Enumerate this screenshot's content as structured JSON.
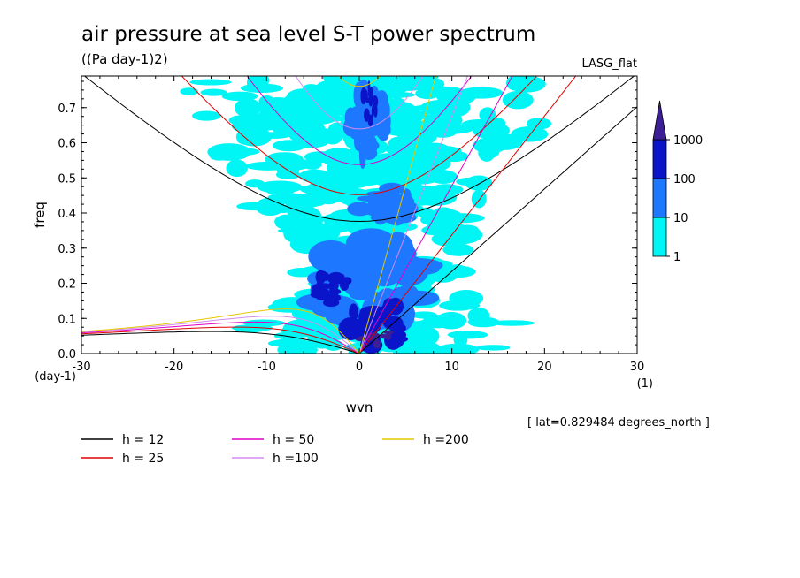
{
  "chart_data": {
    "type": "heatmap",
    "title": "air pressure at sea level S-T power spectrum",
    "subtitle": "((Pa day-1)2)",
    "model_label": "LASG_flat",
    "xlabel": "wvn",
    "ylabel": "freq",
    "x_unit": "(1)",
    "y_unit": "(day-1)",
    "xlim": [
      -30,
      30
    ],
    "ylim": [
      0,
      0.79
    ],
    "x_ticks": [
      -30,
      -20,
      -10,
      0,
      10,
      20,
      30
    ],
    "x_tick_labels": [
      "-30",
      "-20",
      "-10",
      "0",
      "10",
      "20",
      "30"
    ],
    "y_ticks": [
      0.0,
      0.1,
      0.2,
      0.3,
      0.4,
      0.5,
      0.6,
      0.7
    ],
    "y_tick_labels": [
      "0.0",
      "0.1",
      "0.2",
      "0.3",
      "0.4",
      "0.5",
      "0.6",
      "0.7"
    ],
    "colorbar": {
      "levels": [
        1,
        10,
        100,
        1000
      ],
      "labels": [
        "1",
        "10",
        "100",
        "1000"
      ],
      "colors": [
        "#00f5f5",
        "#1e78ff",
        "#0a14c8",
        "#3c1e96"
      ]
    },
    "footnote": "[ lat=0.829484 degrees_north ]",
    "dispersion_curves": [
      {
        "name": "h = 12",
        "legend": "h = 12",
        "h": 12,
        "color": "#000000"
      },
      {
        "name": "h = 25",
        "legend": "h = 25",
        "h": 25,
        "color": "#e10000"
      },
      {
        "name": "h = 50",
        "legend": "h = 50",
        "h": 50,
        "color": "#e100c8"
      },
      {
        "name": "h = 100",
        "legend": "h =100",
        "h": 100,
        "color": "#d28cf0"
      },
      {
        "name": "h = 200",
        "legend": "h =200",
        "h": 200,
        "color": "#e6c800"
      }
    ],
    "spectrum_regions": [
      {
        "level": 1,
        "shape": "band",
        "x": [
          -28,
          20
        ],
        "y": [
          0.0,
          0.79
        ],
        "note": "scattered cyan blotches"
      },
      {
        "level": 10,
        "shape": "blob",
        "cx": 1,
        "cy": 0.2,
        "rx": 6,
        "ry": 0.12
      },
      {
        "level": 10,
        "shape": "blob",
        "cx": 1,
        "cy": 0.66,
        "rx": 2,
        "ry": 0.1
      },
      {
        "level": 10,
        "shape": "blob",
        "cx": 3,
        "cy": 0.42,
        "rx": 3,
        "ry": 0.05
      },
      {
        "level": 100,
        "shape": "blob",
        "cx": 2,
        "cy": 0.08,
        "rx": 3,
        "ry": 0.08
      },
      {
        "level": 100,
        "shape": "blob",
        "cx": -3,
        "cy": 0.18,
        "rx": 2,
        "ry": 0.05
      },
      {
        "level": 100,
        "shape": "blob",
        "cx": 1,
        "cy": 0.7,
        "rx": 0.8,
        "ry": 0.06
      },
      {
        "level": 1000,
        "shape": "blob",
        "cx": 2,
        "cy": 0.04,
        "rx": 2,
        "ry": 0.03
      }
    ]
  }
}
